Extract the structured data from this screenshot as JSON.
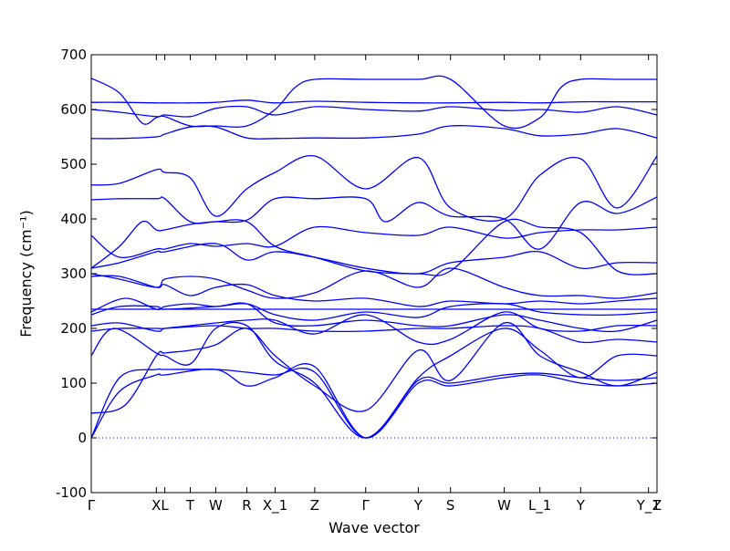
{
  "chart_data": {
    "type": "line",
    "title": "",
    "xlabel": "Wave vector",
    "ylabel": "Frequency (cm⁻¹)",
    "ylim": [
      -100,
      700
    ],
    "yticks": [
      -100,
      0,
      100,
      200,
      300,
      400,
      500,
      600,
      700
    ],
    "x_range": [
      0,
      1
    ],
    "x_ticks": [
      {
        "label": "Γ",
        "x": 0.0
      },
      {
        "label": "X",
        "x": 0.115
      },
      {
        "label": "L",
        "x": 0.13
      },
      {
        "label": "T",
        "x": 0.175
      },
      {
        "label": "W",
        "x": 0.22
      },
      {
        "label": "R",
        "x": 0.275
      },
      {
        "label": "X_1",
        "x": 0.325
      },
      {
        "label": "Z",
        "x": 0.395
      },
      {
        "label": "Γ",
        "x": 0.485
      },
      {
        "label": "Y",
        "x": 0.578
      },
      {
        "label": "S",
        "x": 0.635
      },
      {
        "label": "W",
        "x": 0.73
      },
      {
        "label": "L_1",
        "x": 0.793
      },
      {
        "label": "Y",
        "x": 0.865
      },
      {
        "label": "Y_1",
        "x": 0.985
      },
      {
        "label": "Z",
        "x": 1.0
      }
    ],
    "zero_line": {
      "y": 0,
      "style": "dotted"
    },
    "grid": false,
    "line_color": "#0000ff",
    "series": [
      {
        "x": [
          0,
          0.05,
          0.115,
          0.13,
          0.22,
          0.275,
          0.325,
          0.395,
          0.485,
          0.578,
          0.635,
          0.73,
          0.793,
          0.865,
          0.93,
          1.0
        ],
        "y": [
          0,
          85,
          115,
          115,
          125,
          95,
          110,
          130,
          0,
          100,
          95,
          110,
          115,
          100,
          95,
          100
        ]
      },
      {
        "x": [
          0,
          0.05,
          0.115,
          0.13,
          0.22,
          0.275,
          0.325,
          0.395,
          0.485,
          0.578,
          0.635,
          0.73,
          0.793,
          0.865,
          0.93,
          1.0
        ],
        "y": [
          0,
          110,
          125,
          125,
          125,
          120,
          115,
          120,
          0,
          105,
          100,
          115,
          118,
          110,
          105,
          110
        ]
      },
      {
        "x": [
          0,
          0.06,
          0.115,
          0.13,
          0.175,
          0.22,
          0.275,
          0.325,
          0.395,
          0.485,
          0.578,
          0.635,
          0.73,
          0.793,
          0.865,
          0.93,
          1.0
        ],
        "y": [
          45,
          60,
          150,
          155,
          160,
          170,
          200,
          150,
          95,
          50,
          160,
          105,
          210,
          150,
          120,
          95,
          120
        ]
      },
      {
        "x": [
          0,
          0.04,
          0.115,
          0.13,
          0.175,
          0.22,
          0.275,
          0.325,
          0.395,
          0.485,
          0.578,
          0.635,
          0.73,
          0.793,
          0.865,
          0.93,
          1.0
        ],
        "y": [
          150,
          200,
          155,
          150,
          135,
          200,
          205,
          140,
          100,
          0,
          110,
          150,
          200,
          160,
          110,
          150,
          150
        ]
      },
      {
        "x": [
          0,
          0.05,
          0.115,
          0.13,
          0.22,
          0.275,
          0.325,
          0.395,
          0.485,
          0.578,
          0.635,
          0.73,
          0.793,
          0.865,
          0.93,
          1.0
        ],
        "y": [
          195,
          200,
          200,
          200,
          205,
          200,
          200,
          195,
          195,
          200,
          200,
          205,
          200,
          175,
          180,
          175
        ]
      },
      {
        "x": [
          0,
          0.05,
          0.115,
          0.13,
          0.175,
          0.22,
          0.275,
          0.325,
          0.395,
          0.485,
          0.578,
          0.635,
          0.73,
          0.793,
          0.865,
          0.93,
          1.0
        ],
        "y": [
          205,
          210,
          195,
          200,
          205,
          210,
          215,
          215,
          190,
          225,
          175,
          180,
          230,
          200,
          195,
          205,
          205
        ]
      },
      {
        "x": [
          0,
          0.05,
          0.115,
          0.13,
          0.22,
          0.275,
          0.325,
          0.395,
          0.485,
          0.578,
          0.635,
          0.73,
          0.793,
          0.865,
          0.93,
          1.0
        ],
        "y": [
          225,
          240,
          240,
          235,
          240,
          245,
          210,
          205,
          215,
          205,
          205,
          225,
          215,
          200,
          195,
          215
        ]
      },
      {
        "x": [
          0,
          0.06,
          0.115,
          0.13,
          0.175,
          0.22,
          0.275,
          0.325,
          0.395,
          0.485,
          0.578,
          0.635,
          0.73,
          0.793,
          0.865,
          0.93,
          1.0
        ],
        "y": [
          230,
          255,
          235,
          240,
          245,
          240,
          245,
          225,
          215,
          230,
          220,
          240,
          245,
          230,
          225,
          225,
          230
        ]
      },
      {
        "x": [
          0,
          0.05,
          0.115,
          0.13,
          0.175,
          0.22,
          0.275,
          0.325,
          0.395,
          0.485,
          0.578,
          0.635,
          0.73,
          0.793,
          0.865,
          0.93,
          1.0
        ],
        "y": [
          235,
          235,
          235,
          235,
          235,
          235,
          235,
          235,
          235,
          235,
          235,
          235,
          235,
          235,
          235,
          235,
          235
        ]
      },
      {
        "x": [
          0,
          0.05,
          0.115,
          0.13,
          0.175,
          0.22,
          0.275,
          0.325,
          0.395,
          0.485,
          0.578,
          0.635,
          0.73,
          0.793,
          0.865,
          0.93,
          1.0
        ],
        "y": [
          295,
          295,
          275,
          280,
          260,
          275,
          280,
          260,
          250,
          255,
          240,
          250,
          245,
          250,
          245,
          250,
          255
        ]
      },
      {
        "x": [
          0,
          0.05,
          0.115,
          0.13,
          0.175,
          0.22,
          0.275,
          0.325,
          0.395,
          0.485,
          0.578,
          0.635,
          0.73,
          0.793,
          0.865,
          0.93,
          1.0
        ],
        "y": [
          300,
          290,
          275,
          290,
          295,
          290,
          270,
          255,
          265,
          305,
          275,
          310,
          275,
          260,
          260,
          255,
          265
        ]
      },
      {
        "x": [
          0,
          0.05,
          0.115,
          0.13,
          0.22,
          0.275,
          0.325,
          0.395,
          0.485,
          0.578,
          0.635,
          0.73,
          0.793,
          0.865,
          0.93,
          1.0
        ],
        "y": [
          310,
          320,
          340,
          340,
          355,
          325,
          340,
          330,
          310,
          300,
          320,
          330,
          340,
          310,
          320,
          320
        ]
      },
      {
        "x": [
          0,
          0.05,
          0.115,
          0.13,
          0.175,
          0.22,
          0.275,
          0.325,
          0.395,
          0.485,
          0.578,
          0.635,
          0.73,
          0.793,
          0.865,
          0.93,
          1.0
        ],
        "y": [
          370,
          330,
          345,
          345,
          355,
          350,
          355,
          350,
          385,
          375,
          370,
          385,
          365,
          375,
          380,
          380,
          385
        ]
      },
      {
        "x": [
          0,
          0.05,
          0.09,
          0.115,
          0.13,
          0.175,
          0.22,
          0.275,
          0.325,
          0.395,
          0.485,
          0.578,
          0.635,
          0.73,
          0.793,
          0.865,
          0.93,
          1.0
        ],
        "y": [
          310,
          350,
          395,
          380,
          380,
          390,
          395,
          395,
          350,
          330,
          305,
          300,
          305,
          395,
          385,
          375,
          305,
          300
        ]
      },
      {
        "x": [
          0,
          0.05,
          0.115,
          0.13,
          0.175,
          0.22,
          0.275,
          0.325,
          0.395,
          0.485,
          0.52,
          0.578,
          0.635,
          0.73,
          0.793,
          0.865,
          0.93,
          1.0
        ],
        "y": [
          435,
          437,
          437,
          437,
          395,
          395,
          398,
          437,
          437,
          437,
          395,
          430,
          405,
          400,
          345,
          430,
          410,
          440
        ]
      },
      {
        "x": [
          0,
          0.05,
          0.115,
          0.13,
          0.175,
          0.22,
          0.275,
          0.325,
          0.395,
          0.485,
          0.578,
          0.635,
          0.73,
          0.793,
          0.865,
          0.93,
          1.0
        ],
        "y": [
          462,
          465,
          490,
          485,
          475,
          405,
          455,
          485,
          515,
          455,
          512,
          420,
          400,
          480,
          510,
          420,
          515
        ]
      },
      {
        "x": [
          0,
          0.05,
          0.115,
          0.13,
          0.175,
          0.22,
          0.275,
          0.325,
          0.395,
          0.485,
          0.578,
          0.635,
          0.73,
          0.793,
          0.865,
          0.93,
          1.0
        ],
        "y": [
          547,
          547,
          550,
          555,
          568,
          568,
          548,
          547,
          548,
          548,
          555,
          570,
          565,
          552,
          555,
          565,
          548
        ]
      },
      {
        "x": [
          0,
          0.05,
          0.115,
          0.13,
          0.175,
          0.22,
          0.275,
          0.325,
          0.395,
          0.485,
          0.578,
          0.635,
          0.73,
          0.793,
          0.865,
          0.93,
          1.0
        ],
        "y": [
          600,
          595,
          587,
          590,
          587,
          602,
          605,
          590,
          605,
          600,
          597,
          605,
          598,
          600,
          595,
          605,
          590
        ]
      },
      {
        "x": [
          0,
          0.05,
          0.115,
          0.13,
          0.175,
          0.22,
          0.275,
          0.325,
          0.395,
          0.485,
          0.578,
          0.635,
          0.73,
          0.793,
          0.865,
          0.93,
          1.0
        ],
        "y": [
          613,
          613,
          612,
          612,
          612,
          613,
          617,
          612,
          615,
          613,
          612,
          612,
          613,
          612,
          614,
          614,
          614
        ]
      },
      {
        "x": [
          0,
          0.05,
          0.09,
          0.115,
          0.13,
          0.175,
          0.22,
          0.275,
          0.325,
          0.36,
          0.395,
          0.485,
          0.578,
          0.635,
          0.73,
          0.793,
          0.83,
          0.865,
          0.93,
          1.0
        ],
        "y": [
          657,
          630,
          575,
          585,
          587,
          570,
          570,
          570,
          600,
          640,
          655,
          655,
          655,
          655,
          570,
          585,
          640,
          655,
          655,
          655
        ]
      }
    ]
  }
}
